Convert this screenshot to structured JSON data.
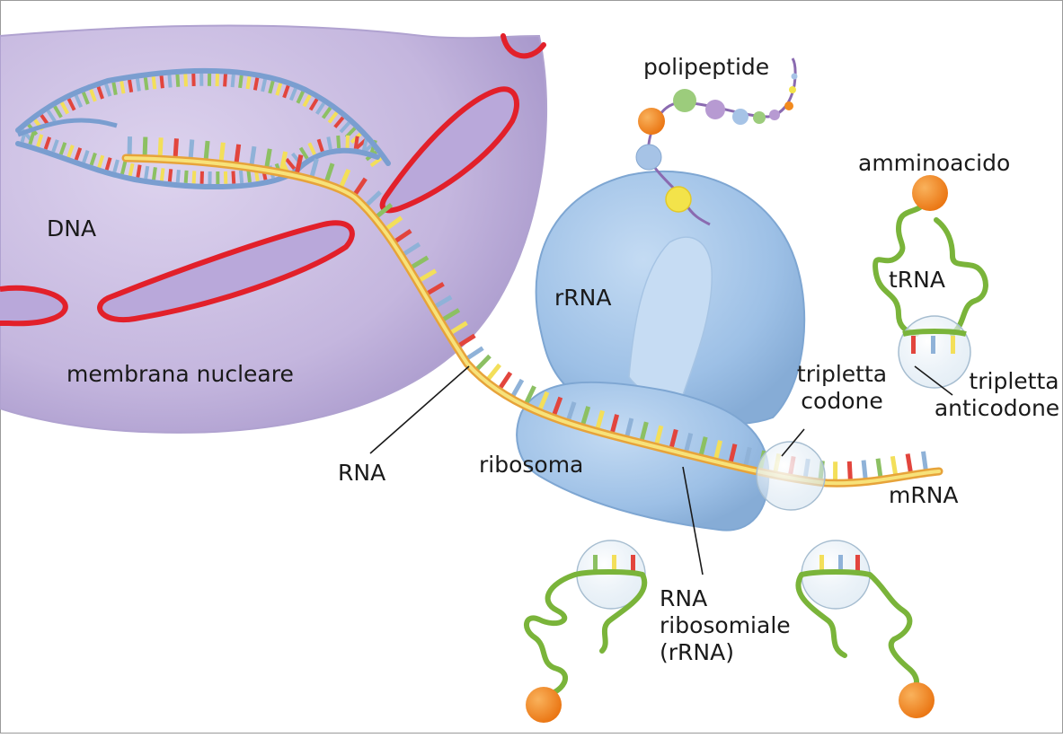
{
  "labels": {
    "dna": "DNA",
    "nuclear_membrane": "membrana nucleare",
    "rna": "RNA",
    "ribosome": "ribosoma",
    "rrna_top": "rRNA",
    "polypeptide": "polipeptide",
    "amino_acid": "amminoacido",
    "trna": "tRNA",
    "codon_line1": "tripletta",
    "codon_line2": "codone",
    "anticodon_line1": "tripletta",
    "anticodon_line2": "anticodone",
    "mrna": "mRNA",
    "rrna_line1": "RNA",
    "rrna_line2": "ribosomiale",
    "rrna_line3": "(rRNA)"
  },
  "colors": {
    "nucleus": "#c9bde0",
    "membrane_red": "#e2202a",
    "ribosome": "#9ec2e8",
    "trna_green": "#7ab43a",
    "amino_orange": "#f28a1e",
    "mrna_yellow": "#f7e27a",
    "base_red": "#e2453d",
    "base_yellow": "#f3df5a",
    "base_green": "#8cc063",
    "base_blue": "#8fb2d8"
  }
}
